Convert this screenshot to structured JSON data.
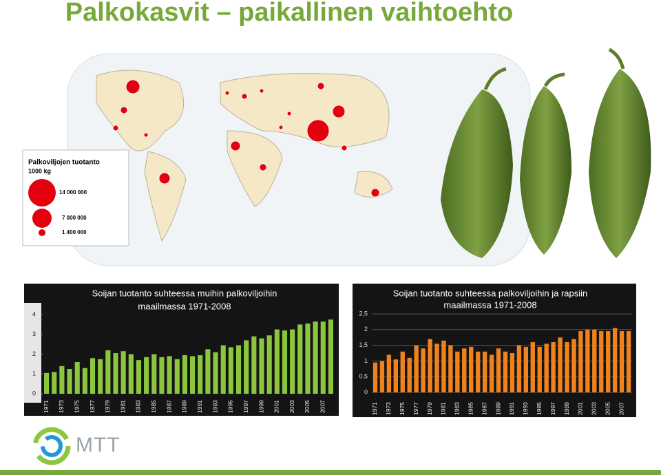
{
  "title": "Palkokasvit – paikallinen vaihtoehto",
  "map_legend": {
    "title": "Palkoviljojen tuotanto",
    "unit": "1000 kg",
    "sizes": [
      "14 000 000",
      "7 000 000",
      "1 400 000"
    ]
  },
  "logo": "MTT",
  "chart_data": [
    {
      "type": "bar",
      "title": [
        "Soijan tuotanto suhteessa muihin palkoviljoihin",
        "maailmassa 1971-2008"
      ],
      "categories": [
        "1971",
        null,
        "1973",
        null,
        "1975",
        null,
        "1977",
        null,
        "1979",
        null,
        "1981",
        null,
        "1983",
        null,
        "1985",
        null,
        "1987",
        null,
        "1989",
        null,
        "1991",
        null,
        "1993",
        null,
        "1995",
        null,
        "1997",
        null,
        "1999",
        null,
        "2001",
        null,
        "2003",
        null,
        "2005",
        null,
        "2007",
        null
      ],
      "values": [
        1.05,
        1.1,
        1.4,
        1.25,
        1.6,
        1.3,
        1.8,
        1.75,
        2.2,
        2.05,
        2.15,
        2.0,
        1.7,
        1.85,
        2.0,
        1.85,
        1.9,
        1.75,
        1.95,
        1.9,
        1.95,
        2.25,
        2.1,
        2.45,
        2.35,
        2.45,
        2.7,
        2.9,
        2.8,
        2.95,
        3.25,
        3.2,
        3.25,
        3.5,
        3.55,
        3.65,
        3.65,
        3.75
      ],
      "color": "#8cc63e",
      "ylim": [
        0,
        4
      ],
      "yticks": [
        0,
        1,
        2,
        3,
        4
      ],
      "grid": false
    },
    {
      "type": "bar",
      "title": [
        "Soijan tuotanto suhteessa palkoviljoihin ja rapsiin",
        "maailmassa 1971-2008"
      ],
      "categories": [
        "1971",
        null,
        "1973",
        null,
        "1975",
        null,
        "1977",
        null,
        "1979",
        null,
        "1981",
        null,
        "1983",
        null,
        "1985",
        null,
        "1987",
        null,
        "1989",
        null,
        "1991",
        null,
        "1993",
        null,
        "1995",
        null,
        "1997",
        null,
        "1999",
        null,
        "2001",
        null,
        "2003",
        null,
        "2005",
        null,
        "2007",
        null
      ],
      "values": [
        0.95,
        1.0,
        1.2,
        1.05,
        1.3,
        1.1,
        1.5,
        1.4,
        1.7,
        1.55,
        1.65,
        1.5,
        1.3,
        1.4,
        1.45,
        1.3,
        1.3,
        1.2,
        1.4,
        1.3,
        1.25,
        1.5,
        1.45,
        1.6,
        1.45,
        1.55,
        1.6,
        1.75,
        1.6,
        1.7,
        1.95,
        2.0,
        2.0,
        1.95,
        1.95,
        2.05,
        1.95,
        1.95
      ],
      "color": "#f0821e",
      "ylim": [
        0,
        2.5
      ],
      "yticks": [
        0,
        {
          "value": 0.5,
          "label": "0,5"
        },
        1,
        {
          "value": 1.5,
          "label": "1,5"
        },
        2,
        {
          "value": 2.5,
          "label": "2,5"
        }
      ],
      "grid": true
    }
  ]
}
